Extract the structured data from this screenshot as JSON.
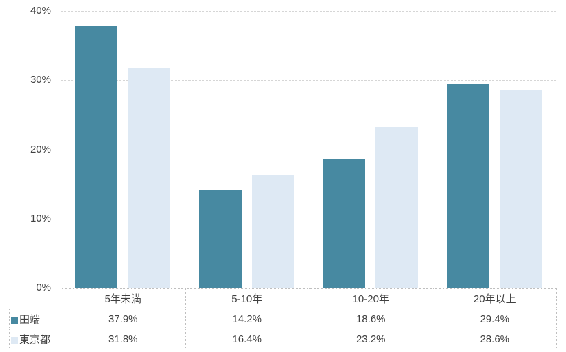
{
  "chart_data": {
    "type": "bar",
    "title": "",
    "xlabel": "",
    "ylabel": "",
    "categories": [
      "5年未満",
      "5-10年",
      "10-20年",
      "20年以上"
    ],
    "series": [
      {
        "name": "田端",
        "color": "#4789A1",
        "values": [
          37.9,
          14.2,
          18.6,
          29.4
        ],
        "labels": [
          "37.9%",
          "14.2%",
          "18.6%",
          "29.4%"
        ]
      },
      {
        "name": "東京都",
        "color": "#DEE9F4",
        "values": [
          31.8,
          16.4,
          23.2,
          28.6
        ],
        "labels": [
          "31.8%",
          "16.4%",
          "23.2%",
          "28.6%"
        ]
      }
    ],
    "ylim": [
      0,
      40
    ],
    "ytick_step": 10,
    "ytick_labels": [
      "0%",
      "10%",
      "20%",
      "30%",
      "40%"
    ],
    "grid": "horizontal-dashed",
    "legend_position": "data-table-left",
    "data_table_shown": true
  },
  "colors": {
    "background": "#FFFFFF",
    "series_1": "#4789A1",
    "series_2": "#DEE9F4",
    "gridline": "#D6D6D6",
    "table_border": "#BFBFBF",
    "text": "#404040"
  }
}
